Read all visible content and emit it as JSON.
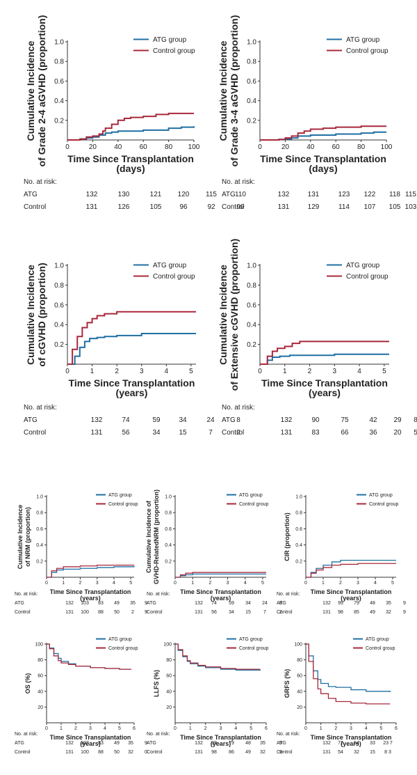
{
  "colors": {
    "atg": "#1f6fa3",
    "control": "#a8283b",
    "axis": "#333333"
  },
  "risk_header": "No. at risk:",
  "chart_data": [
    {
      "type": "line",
      "title": "",
      "ylabel_lines": [
        "Cumulative Incidence",
        "of Grade 2-4 aGVHD (proportion)"
      ],
      "xlabel_lines": [
        "Time Since Transplantation",
        "(days)"
      ],
      "xlim": [
        0,
        100
      ],
      "ylim": [
        0,
        1.0
      ],
      "xticks": [
        "0",
        "20",
        "40",
        "60",
        "80",
        "100"
      ],
      "yticks": [
        "0.2",
        "0.4",
        "0.6",
        "0.8",
        "1.0"
      ],
      "legend": [
        "ATG group",
        "Control group"
      ],
      "series": [
        {
          "name": "ATG group",
          "x": [
            0,
            10,
            15,
            20,
            25,
            30,
            35,
            40,
            60,
            80,
            90,
            100
          ],
          "y": [
            0,
            0.01,
            0.02,
            0.03,
            0.05,
            0.07,
            0.08,
            0.09,
            0.1,
            0.12,
            0.13,
            0.14
          ]
        },
        {
          "name": "Control group",
          "x": [
            0,
            10,
            15,
            20,
            25,
            28,
            30,
            35,
            40,
            45,
            50,
            60,
            70,
            80,
            100
          ],
          "y": [
            0,
            0.01,
            0.03,
            0.04,
            0.06,
            0.09,
            0.12,
            0.16,
            0.2,
            0.22,
            0.23,
            0.24,
            0.26,
            0.27,
            0.27
          ]
        }
      ],
      "risk": {
        "rows": [
          {
            "label": "ATG",
            "values": [
              "132",
              "130",
              "121",
              "120",
              "115",
              "110"
            ]
          },
          {
            "label": "Control",
            "values": [
              "131",
              "126",
              "105",
              "96",
              "92",
              "90"
            ]
          }
        ]
      }
    },
    {
      "type": "line",
      "title": "",
      "ylabel_lines": [
        "Cumulative Incidence",
        "of Grade 3-4 aGVHD (proportion)"
      ],
      "xlabel_lines": [
        "Time Since Transplantation",
        "(days)"
      ],
      "xlim": [
        0,
        100
      ],
      "ylim": [
        0,
        1.0
      ],
      "xticks": [
        "0",
        "20",
        "40",
        "60",
        "80",
        "100"
      ],
      "yticks": [
        "0.2",
        "0.4",
        "0.6",
        "0.8",
        "1.0"
      ],
      "legend": [
        "ATG group",
        "Control group"
      ],
      "series": [
        {
          "name": "ATG group",
          "x": [
            0,
            15,
            20,
            25,
            30,
            40,
            60,
            80,
            90,
            100
          ],
          "y": [
            0,
            0.005,
            0.01,
            0.02,
            0.04,
            0.05,
            0.06,
            0.07,
            0.08,
            0.08
          ]
        },
        {
          "name": "Control group",
          "x": [
            0,
            15,
            20,
            25,
            30,
            35,
            40,
            50,
            60,
            80,
            100
          ],
          "y": [
            0,
            0.005,
            0.02,
            0.04,
            0.07,
            0.09,
            0.11,
            0.12,
            0.13,
            0.14,
            0.14
          ]
        }
      ],
      "risk": {
        "rows": [
          {
            "label": "ATG",
            "values": [
              "132",
              "131",
              "123",
              "122",
              "118",
              "115"
            ]
          },
          {
            "label": "Control",
            "values": [
              "131",
              "129",
              "114",
              "107",
              "105",
              "103"
            ]
          }
        ]
      }
    },
    {
      "type": "line",
      "title": "",
      "ylabel_lines": [
        "Cumulative Incidence",
        "of cGVHD (proportion)"
      ],
      "xlabel_lines": [
        "Time Since Transplantation",
        "(years)"
      ],
      "xlim": [
        0,
        5.2
      ],
      "ylim": [
        0,
        1.0
      ],
      "xticks": [
        "0",
        "1",
        "2",
        "3",
        "4",
        "5"
      ],
      "yticks": [
        "0.2",
        "0.4",
        "0.6",
        "0.8",
        "1.0"
      ],
      "legend": [
        "ATG group",
        "Control group"
      ],
      "series": [
        {
          "name": "ATG group",
          "x": [
            0,
            0.3,
            0.5,
            0.7,
            0.9,
            1.2,
            1.5,
            2,
            3,
            5.2
          ],
          "y": [
            0,
            0.08,
            0.17,
            0.23,
            0.26,
            0.27,
            0.28,
            0.29,
            0.31,
            0.31
          ]
        },
        {
          "name": "Control group",
          "x": [
            0,
            0.2,
            0.4,
            0.6,
            0.8,
            1.0,
            1.2,
            1.5,
            2,
            3,
            5.2
          ],
          "y": [
            0,
            0.15,
            0.28,
            0.37,
            0.42,
            0.46,
            0.49,
            0.51,
            0.53,
            0.53,
            0.53
          ]
        }
      ],
      "risk": {
        "rows": [
          {
            "label": "ATG",
            "values": [
              "132",
              "74",
              "59",
              "34",
              "24",
              "8"
            ]
          },
          {
            "label": "Control",
            "values": [
              "131",
              "56",
              "34",
              "15",
              "7",
              "2"
            ]
          }
        ]
      }
    },
    {
      "type": "line",
      "title": "",
      "ylabel_lines": [
        "Cumulative Incidence",
        "of Extensive cGVHD (proportion)"
      ],
      "xlabel_lines": [
        "Time Since Transplantation",
        "(years)"
      ],
      "xlim": [
        0,
        5.2
      ],
      "ylim": [
        0,
        1.0
      ],
      "xticks": [
        "0",
        "1",
        "2",
        "3",
        "4",
        "5"
      ],
      "yticks": [
        "0.2",
        "0.4",
        "0.6",
        "0.8",
        "1.0"
      ],
      "legend": [
        "ATG group",
        "Control group"
      ],
      "series": [
        {
          "name": "ATG group",
          "x": [
            0,
            0.3,
            0.5,
            0.8,
            1.2,
            2,
            3,
            5.2
          ],
          "y": [
            0,
            0.04,
            0.07,
            0.08,
            0.09,
            0.09,
            0.1,
            0.1
          ]
        },
        {
          "name": "Control group",
          "x": [
            0,
            0.3,
            0.5,
            0.7,
            1.0,
            1.3,
            1.6,
            2,
            5.2
          ],
          "y": [
            0,
            0.08,
            0.13,
            0.16,
            0.18,
            0.21,
            0.23,
            0.23,
            0.23
          ]
        }
      ],
      "risk": {
        "rows": [
          {
            "label": "ATG",
            "values": [
              "132",
              "90",
              "75",
              "42",
              "29",
              "8"
            ]
          },
          {
            "label": "Control",
            "values": [
              "131",
              "83",
              "66",
              "36",
              "20",
              "5"
            ]
          }
        ]
      }
    },
    {
      "type": "line",
      "title": "",
      "ylabel_lines": [
        "Cumulative Incidence",
        "of NRM (proportion)"
      ],
      "xlabel_lines": [
        "Time Since Transplantation",
        "(years)"
      ],
      "xlim": [
        0,
        5.2
      ],
      "ylim": [
        0,
        1.0
      ],
      "xticks": [
        "0",
        "1",
        "2",
        "3",
        "4",
        "5"
      ],
      "yticks": [
        "0.2",
        "0.4",
        "0.6",
        "0.8",
        "1.0"
      ],
      "legend": [
        "ATG group",
        "Control group"
      ],
      "series": [
        {
          "name": "ATG group",
          "x": [
            0,
            0.3,
            0.6,
            1,
            2,
            3,
            4,
            5.2
          ],
          "y": [
            0,
            0.06,
            0.09,
            0.1,
            0.11,
            0.12,
            0.13,
            0.14
          ]
        },
        {
          "name": "Control group",
          "x": [
            0,
            0.3,
            0.6,
            1,
            2,
            3,
            4,
            5.2
          ],
          "y": [
            0,
            0.08,
            0.11,
            0.13,
            0.14,
            0.15,
            0.15,
            0.15
          ]
        }
      ],
      "risk": {
        "rows": [
          {
            "label": "ATG",
            "values": [
              "132",
              "103",
              "83",
              "49",
              "35",
              "9"
            ]
          },
          {
            "label": "Control",
            "values": [
              "131",
              "100",
              "88",
              "50",
              "2",
              "9"
            ]
          }
        ]
      }
    },
    {
      "type": "line",
      "title": "",
      "ylabel_lines": [
        "Cumulative Incidence of",
        "GVHD-RelatedNRM (proportion)"
      ],
      "xlabel_lines": [
        "Time Since Transplantation",
        "(years)"
      ],
      "xlim": [
        0,
        5.2
      ],
      "ylim": [
        0,
        1.0
      ],
      "xticks": [
        "0",
        "1",
        "2",
        "3",
        "4",
        "5"
      ],
      "yticks": [
        "0.2",
        "0.4",
        "0.6",
        "0.8",
        "1.0"
      ],
      "legend": [
        "ATG group",
        "Control group"
      ],
      "series": [
        {
          "name": "ATG group",
          "x": [
            0,
            0.3,
            0.6,
            1,
            5.2
          ],
          "y": [
            0,
            0.02,
            0.03,
            0.04,
            0.04
          ]
        },
        {
          "name": "Control group",
          "x": [
            0,
            0.3,
            0.6,
            1,
            5.2
          ],
          "y": [
            0,
            0.03,
            0.05,
            0.06,
            0.06
          ]
        }
      ],
      "risk": {
        "rows": [
          {
            "label": "ATG",
            "values": [
              "132",
              "74",
              "59",
              "34",
              "24",
              "8"
            ]
          },
          {
            "label": "Control",
            "values": [
              "131",
              "56",
              "34",
              "15",
              "7",
              "2"
            ]
          }
        ]
      }
    },
    {
      "type": "line",
      "title": "",
      "ylabel_lines": [
        "CIR (proportion)"
      ],
      "xlabel_lines": [
        "Time Since Transplantation",
        "(years)"
      ],
      "xlim": [
        0,
        5.2
      ],
      "ylim": [
        0,
        1.0
      ],
      "xticks": [
        "0",
        "1",
        "2",
        "3",
        "4",
        "5"
      ],
      "yticks": [
        "0.2",
        "0.4",
        "0.6",
        "0.8",
        "1.0"
      ],
      "legend": [
        "ATG group",
        "Control group"
      ],
      "series": [
        {
          "name": "ATG group",
          "x": [
            0,
            0.3,
            0.6,
            1,
            1.5,
            2,
            3,
            5.2
          ],
          "y": [
            0,
            0.06,
            0.11,
            0.15,
            0.19,
            0.21,
            0.21,
            0.21
          ]
        },
        {
          "name": "Control group",
          "x": [
            0,
            0.3,
            0.6,
            1,
            1.5,
            2,
            3,
            5.2
          ],
          "y": [
            0,
            0.05,
            0.09,
            0.12,
            0.15,
            0.16,
            0.17,
            0.17
          ]
        }
      ],
      "risk": {
        "rows": [
          {
            "label": "ATG",
            "values": [
              "132",
              "99",
              "79",
              "48",
              "35",
              "9"
            ]
          },
          {
            "label": "Control",
            "values": [
              "131",
              "98",
              "85",
              "49",
              "32",
              "9"
            ]
          }
        ]
      }
    },
    {
      "type": "line",
      "title": "",
      "ylabel_lines": [
        "OS (%)"
      ],
      "xlabel_lines": [
        "Time Since Transplantation",
        "(years)"
      ],
      "xlim": [
        0,
        6
      ],
      "ylim": [
        0,
        100
      ],
      "xticks": [
        "0",
        "1",
        "2",
        "3",
        "4",
        "5",
        "6"
      ],
      "yticks": [
        "20",
        "40",
        "60",
        "80",
        "100"
      ],
      "legend": [
        "ATG group",
        "Control group"
      ],
      "series": [
        {
          "name": "ATG group",
          "x": [
            0,
            0.2,
            0.5,
            0.8,
            1,
            1.5,
            2,
            3,
            4,
            5,
            5.8
          ],
          "y": [
            100,
            95,
            88,
            82,
            78,
            75,
            72,
            70,
            69,
            68,
            68
          ]
        },
        {
          "name": "Control group",
          "x": [
            0,
            0.2,
            0.5,
            0.8,
            1,
            1.5,
            2,
            3,
            4,
            5,
            5.8
          ],
          "y": [
            100,
            94,
            85,
            79,
            76,
            74,
            72,
            70,
            69,
            68,
            68
          ]
        }
      ],
      "risk": {
        "rows": [
          {
            "label": "ATG",
            "values": [
              "132",
              "103",
              "83",
              "49",
              "35",
              "9"
            ]
          },
          {
            "label": "Control",
            "values": [
              "131",
              "100",
              "88",
              "50",
              "32",
              "0"
            ]
          }
        ]
      }
    },
    {
      "type": "line",
      "title": "",
      "ylabel_lines": [
        "LLFS (%)"
      ],
      "xlabel_lines": [
        "Time Since Transplantation",
        "(years)"
      ],
      "xlim": [
        0,
        6
      ],
      "ylim": [
        0,
        100
      ],
      "xticks": [
        "0",
        "1",
        "2",
        "3",
        "4",
        "5",
        "6"
      ],
      "yticks": [
        "20",
        "40",
        "60",
        "80",
        "100"
      ],
      "legend": [
        "ATG group",
        "Control group"
      ],
      "series": [
        {
          "name": "ATG group",
          "x": [
            0,
            0.2,
            0.5,
            0.8,
            1,
            1.5,
            2,
            3,
            4,
            5.6
          ],
          "y": [
            100,
            92,
            84,
            78,
            75,
            72,
            70,
            68,
            67,
            66
          ]
        },
        {
          "name": "Control group",
          "x": [
            0,
            0.2,
            0.5,
            0.8,
            1,
            1.5,
            2,
            3,
            4,
            5.6
          ],
          "y": [
            100,
            93,
            85,
            79,
            76,
            73,
            71,
            69,
            68,
            68
          ]
        }
      ],
      "risk": {
        "rows": [
          {
            "label": "ATG",
            "values": [
              "132",
              "99",
              "79",
              "48",
              "35",
              "9"
            ]
          },
          {
            "label": "Control",
            "values": [
              "131",
              "98",
              "86",
              "49",
              "32",
              "9"
            ]
          }
        ]
      }
    },
    {
      "type": "line",
      "title": "",
      "ylabel_lines": [
        "GRFS (%)"
      ],
      "xlabel_lines": [
        "Time Since Transplantation",
        "(years)"
      ],
      "xlim": [
        0,
        6
      ],
      "ylim": [
        0,
        100
      ],
      "xticks": [
        "0",
        "1",
        "2",
        "3",
        "4",
        "5",
        "6"
      ],
      "yticks": [
        "20",
        "40",
        "60",
        "80",
        "100"
      ],
      "legend": [
        "ATG group",
        "Control group"
      ],
      "series": [
        {
          "name": "ATG group",
          "x": [
            0,
            0.2,
            0.5,
            0.8,
            1,
            1.5,
            2,
            3,
            4,
            5.6
          ],
          "y": [
            100,
            85,
            66,
            55,
            50,
            46,
            45,
            42,
            40,
            39
          ]
        },
        {
          "name": "Control group",
          "x": [
            0,
            0.2,
            0.5,
            0.8,
            1,
            1.5,
            2,
            3,
            4,
            5.6
          ],
          "y": [
            100,
            78,
            56,
            43,
            37,
            31,
            27,
            25,
            24,
            24
          ]
        }
      ],
      "risk": {
        "rows": [
          {
            "label": "ATG",
            "values": [
              "132",
              "72",
              "54",
              "33",
              "23 7",
              ""
            ]
          },
          {
            "label": "Control",
            "values": [
              "131",
              "54",
              "32",
              "15",
              "8 3",
              ""
            ]
          }
        ]
      }
    }
  ]
}
